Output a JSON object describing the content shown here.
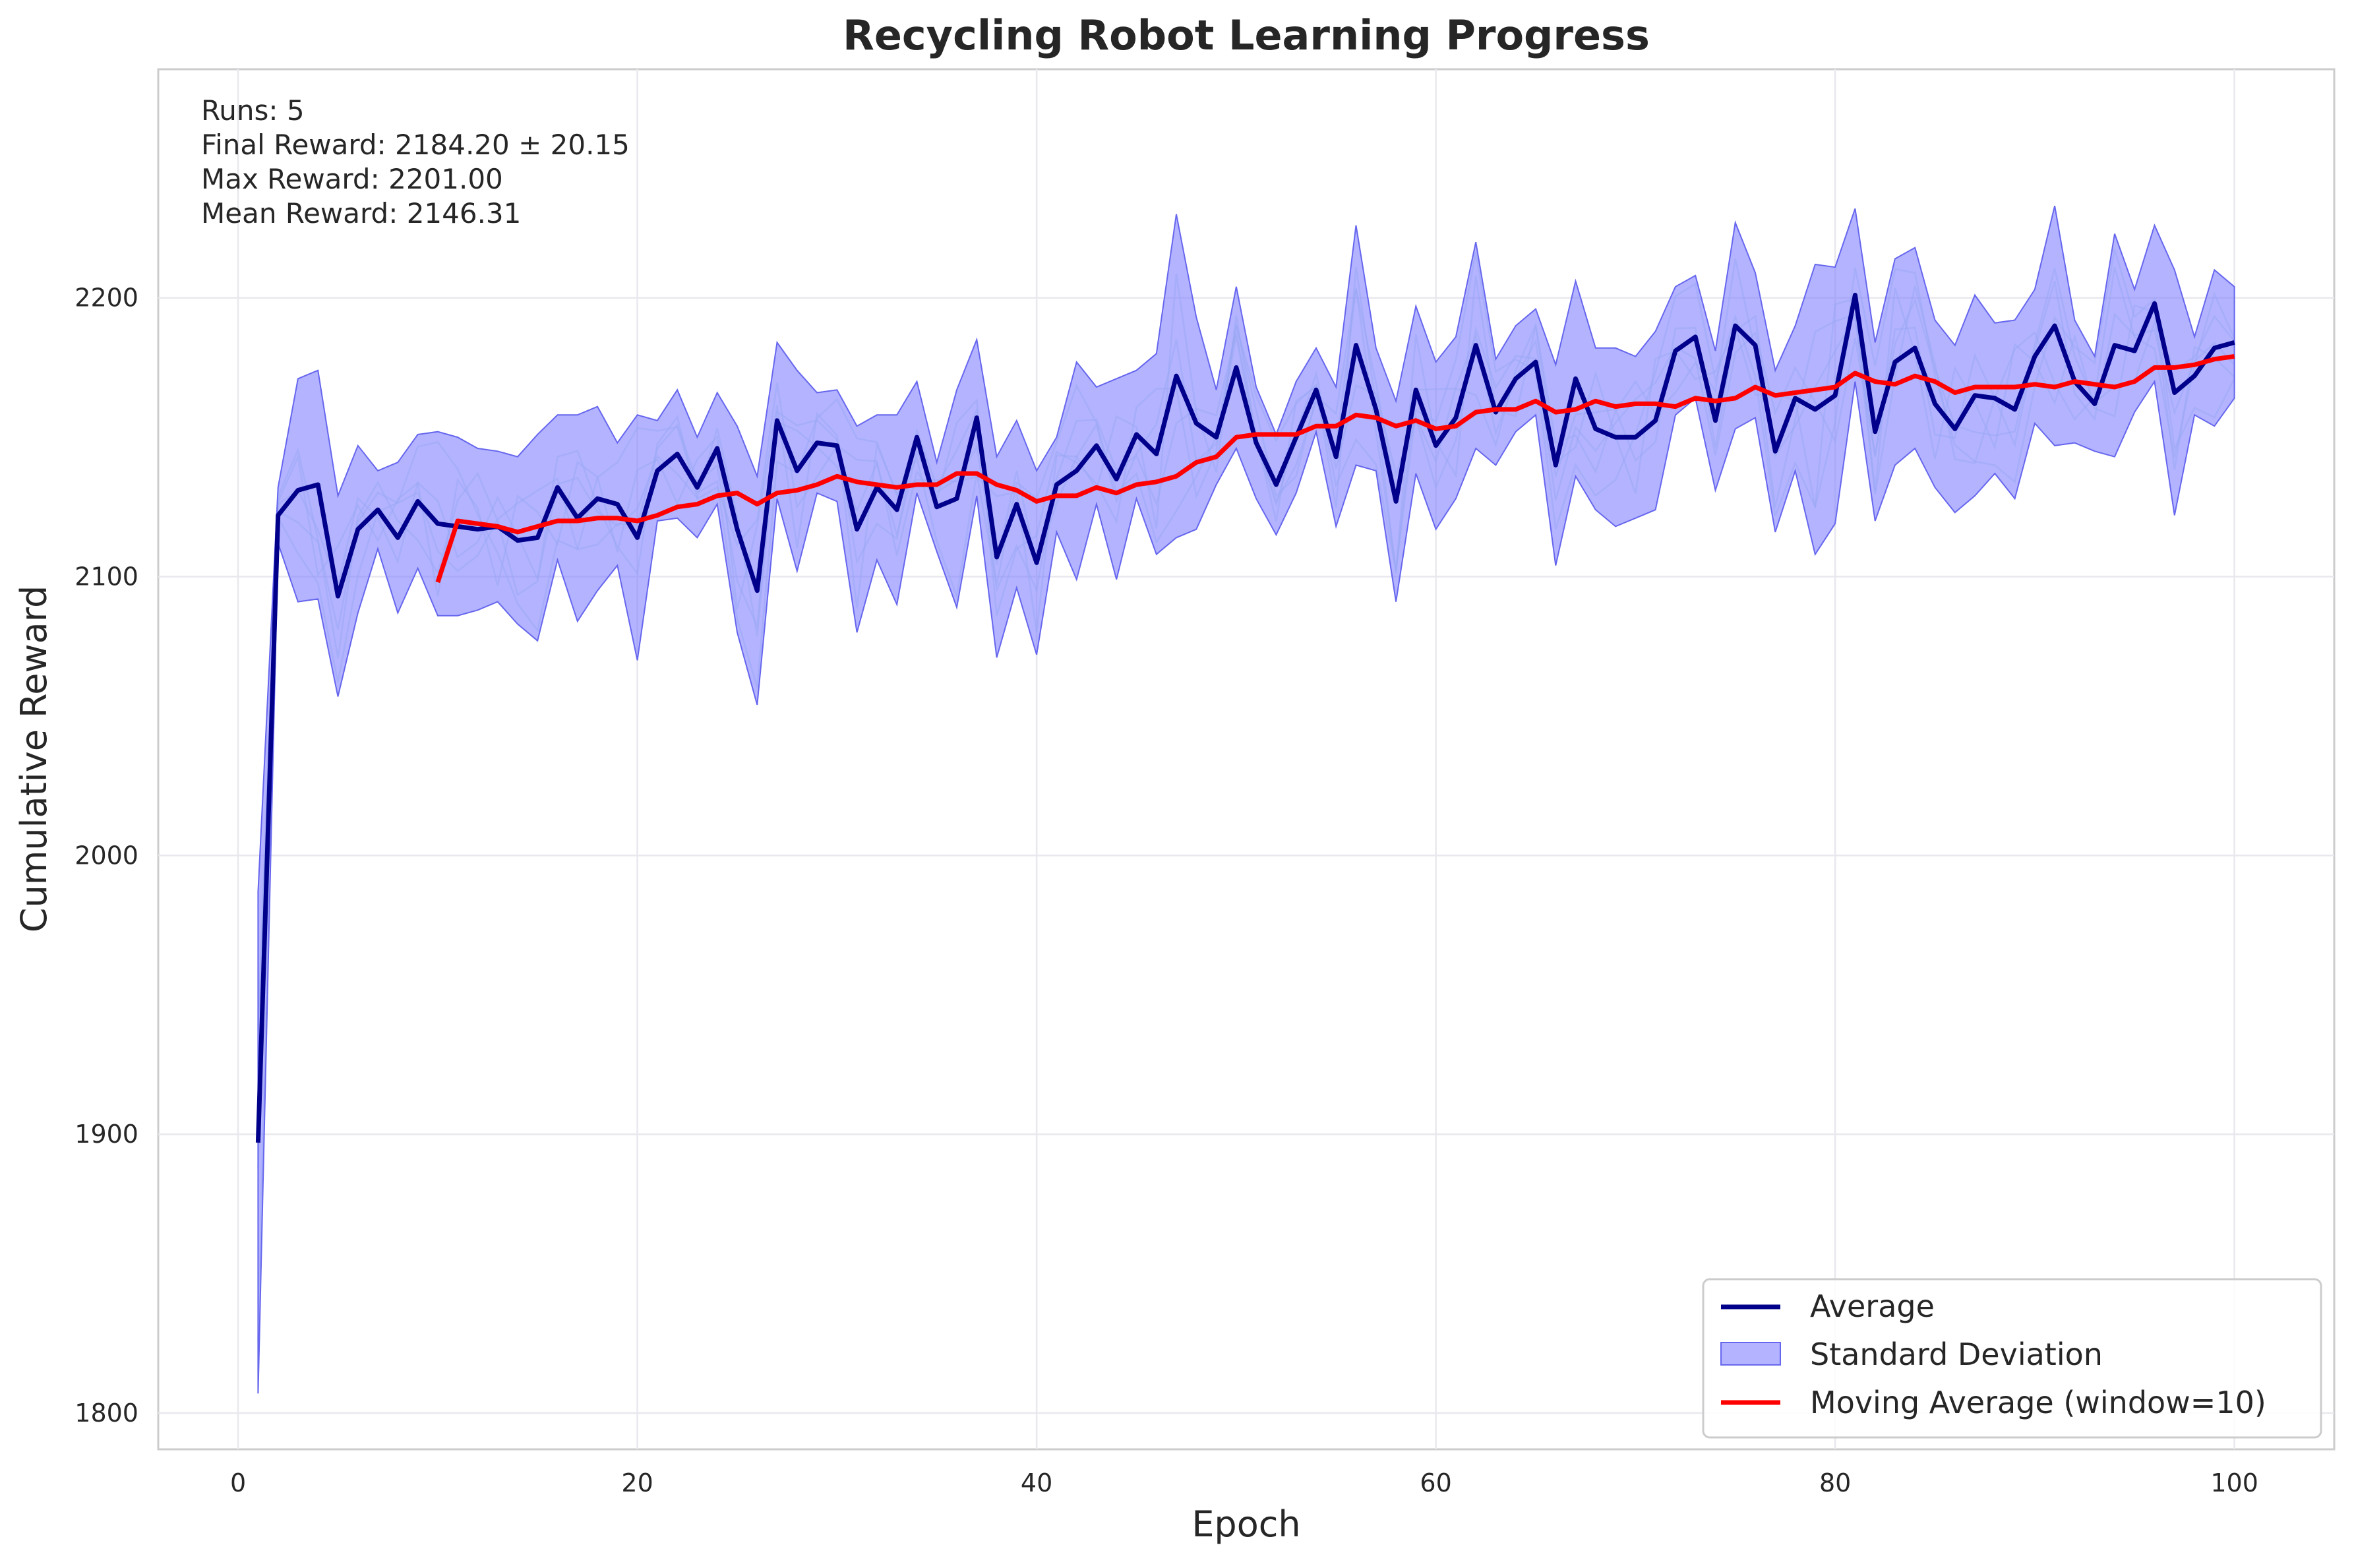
{
  "chart_data": {
    "type": "line",
    "title": "Recycling Robot Learning Progress",
    "xlabel": "Epoch",
    "ylabel": "Cumulative Reward",
    "xlim": [
      -4,
      105
    ],
    "ylim": [
      1787,
      2282
    ],
    "x_ticks": [
      0,
      20,
      40,
      60,
      80,
      100
    ],
    "y_ticks": [
      1800,
      1900,
      2000,
      2100,
      2200
    ],
    "grid": true,
    "legend_position": "bottom-right",
    "legend": [
      "Average",
      "Standard Deviation",
      "Moving Average (window=10)"
    ],
    "colors": {
      "average": "#00008b",
      "std_fill": "#8080ff",
      "std_edge": "#6666ee",
      "moving_average": "#ff0000",
      "runs": "#b8e0e0",
      "grid": "#e8e8ee",
      "axis": "#cccccc"
    },
    "annotations": {
      "runs": "Runs: 5",
      "final_reward": "Final Reward: 2184.20 ± 20.15",
      "max_reward": "Max Reward: 2201.00",
      "mean_reward": "Mean Reward: 2146.31"
    },
    "epochs_start": 1,
    "average": [
      1897,
      2122,
      2131,
      2133,
      2093,
      2117,
      2124,
      2114,
      2127,
      2119,
      2118,
      2117,
      2118,
      2113,
      2114,
      2132,
      2121,
      2128,
      2126,
      2114,
      2138,
      2144,
      2132,
      2146,
      2117,
      2095,
      2156,
      2138,
      2148,
      2147,
      2117,
      2132,
      2124,
      2150,
      2125,
      2128,
      2157,
      2107,
      2126,
      2105,
      2133,
      2138,
      2147,
      2135,
      2151,
      2144,
      2172,
      2155,
      2150,
      2175,
      2148,
      2133,
      2150,
      2167,
      2143,
      2183,
      2160,
      2127,
      2167,
      2147,
      2157,
      2183,
      2159,
      2171,
      2177,
      2140,
      2171,
      2153,
      2150,
      2150,
      2156,
      2181,
      2186,
      2156,
      2190,
      2183,
      2145,
      2164,
      2160,
      2165,
      2201,
      2152,
      2177,
      2182,
      2162,
      2153,
      2165,
      2164,
      2160,
      2179,
      2190,
      2170,
      2162,
      2183,
      2181,
      2198,
      2166,
      2172,
      2182,
      2184
    ],
    "std": [
      90,
      10,
      40,
      41,
      36,
      30,
      14,
      27,
      24,
      33,
      32,
      29,
      27,
      30,
      37,
      26,
      37,
      33,
      22,
      44,
      18,
      23,
      18,
      20,
      37,
      41,
      28,
      36,
      18,
      20,
      37,
      26,
      34,
      20,
      16,
      39,
      28,
      36,
      30,
      33,
      17,
      39,
      21,
      36,
      23,
      36,
      58,
      38,
      17,
      29,
      20,
      18,
      20,
      15,
      25,
      43,
      22,
      36,
      30,
      30,
      29,
      37,
      19,
      19,
      19,
      36,
      35,
      29,
      32,
      29,
      32,
      23,
      22,
      25,
      37,
      26,
      29,
      26,
      52,
      46,
      31,
      32,
      37,
      36,
      30,
      30,
      36,
      27,
      32,
      24,
      43,
      22,
      17,
      40,
      22,
      28,
      44,
      14,
      28,
      20
    ],
    "moving_average_start": 10,
    "moving_average": [
      2098,
      2120,
      2119,
      2118,
      2116,
      2118,
      2120,
      2120,
      2121,
      2121,
      2120,
      2122,
      2125,
      2126,
      2129,
      2130,
      2126,
      2130,
      2131,
      2133,
      2136,
      2134,
      2133,
      2132,
      2133,
      2133,
      2137,
      2137,
      2133,
      2131,
      2127,
      2129,
      2129,
      2132,
      2130,
      2133,
      2134,
      2136,
      2141,
      2143,
      2150,
      2151,
      2151,
      2151,
      2154,
      2154,
      2158,
      2157,
      2154,
      2156,
      2153,
      2154,
      2159,
      2160,
      2160,
      2163,
      2159,
      2160,
      2163,
      2161,
      2162,
      2162,
      2161,
      2164,
      2163,
      2164,
      2168,
      2165,
      2166,
      2167,
      2168,
      2173,
      2170,
      2169,
      2172,
      2170,
      2166,
      2168,
      2168,
      2168,
      2169,
      2168,
      2170,
      2169,
      2168,
      2170,
      2175,
      2175,
      2176,
      2178,
      2179
    ]
  }
}
